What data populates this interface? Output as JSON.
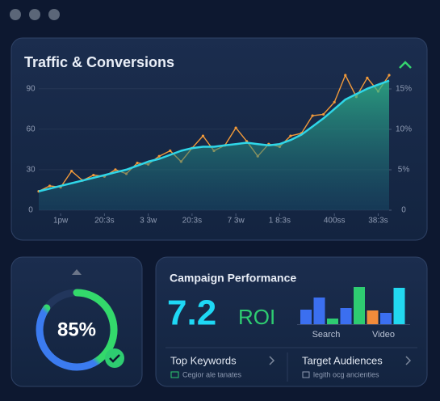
{
  "chart_data": [
    {
      "type": "line",
      "title": "Traffic & Conversions",
      "x": [
        0,
        1,
        2,
        3,
        4,
        5,
        6,
        7,
        8,
        9,
        10,
        11,
        12,
        13,
        14,
        15,
        16,
        17,
        18,
        19,
        20,
        21,
        22,
        23,
        24,
        25,
        26,
        27,
        28,
        29,
        30,
        31,
        32
      ],
      "xlim": [
        0,
        32
      ],
      "xticks": [
        {
          "value": 2,
          "label": "1pw"
        },
        {
          "value": 6,
          "label": "20:3s"
        },
        {
          "value": 10,
          "label": "3 3w"
        },
        {
          "value": 14,
          "label": "20:3s"
        },
        {
          "value": 18,
          "label": "7 3w"
        },
        {
          "value": 22,
          "label": "1 8:3s"
        },
        {
          "value": 27,
          "label": "400ss"
        },
        {
          "value": 31,
          "label": "38:3s"
        }
      ],
      "ylim": [
        0,
        100
      ],
      "yticks": [
        0,
        30,
        60,
        90
      ],
      "y2lim": [
        0,
        16.7
      ],
      "y2ticks": [
        0,
        {
          "value": 5,
          "label": "5%"
        },
        {
          "value": 10,
          "label": "10%"
        },
        {
          "value": 15,
          "label": "15%"
        }
      ],
      "grid": true,
      "series": [
        {
          "color": "#f29a3a",
          "values": [
            14,
            18,
            17,
            29,
            22,
            26,
            25,
            30,
            27,
            35,
            34,
            40,
            44,
            36,
            46,
            55,
            44,
            48,
            61,
            51,
            40,
            49,
            47,
            55,
            57,
            70,
            71,
            80,
            100,
            84,
            98,
            88,
            100
          ]
        },
        {
          "color": "#2fd6e8",
          "values": [
            14,
            16,
            18,
            20,
            22,
            24,
            26,
            28,
            30,
            33,
            36,
            38,
            41,
            44,
            46,
            47,
            47,
            48,
            49,
            50,
            49,
            48,
            49,
            52,
            56,
            62,
            68,
            75,
            82,
            86,
            90,
            93,
            96
          ]
        }
      ]
    },
    {
      "type": "bar",
      "categories": [
        null,
        null,
        "Search",
        null,
        null,
        null,
        "Video",
        null
      ],
      "values": [
        18,
        33,
        7,
        20,
        46,
        17,
        14,
        45
      ],
      "colors": [
        "#3b6ff0",
        "#3b6ff0",
        "#2ecc71",
        "#3b6ff0",
        "#2ecc71",
        "#f28b3a",
        "#3b6ff0",
        "#22d8f0"
      ],
      "ylim": [
        0,
        50
      ]
    },
    {
      "type": "gauge",
      "values": [
        85
      ],
      "value_labels": [
        "85%"
      ],
      "ylim": [
        0,
        100
      ]
    }
  ],
  "campaign": {
    "title": "Campaign Performance",
    "metric": "7.2",
    "metric_unit": "ROI"
  },
  "links": [
    {
      "title": "Top Keywords",
      "subtitle": "Cegior ale tanates"
    },
    {
      "title": "Target Audiences",
      "subtitle": "legith ocg ancienties"
    }
  ]
}
